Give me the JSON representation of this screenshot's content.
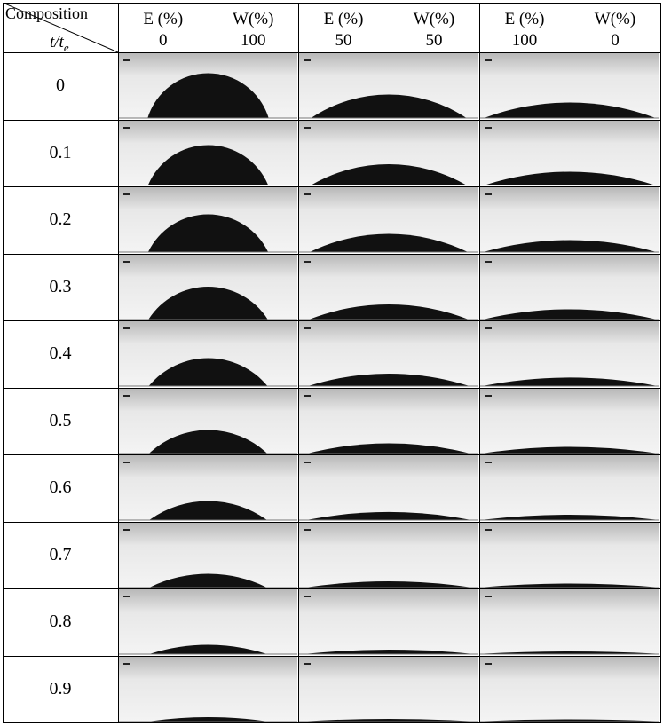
{
  "header": {
    "composition_label": "Composition",
    "time_label": "t/t",
    "time_label_sub": "e",
    "columns": [
      {
        "e_label": "E (%)",
        "w_label": "W(%)",
        "e_value": "0",
        "w_value": "100"
      },
      {
        "e_label": "E (%)",
        "w_label": "W(%)",
        "e_value": "50",
        "w_value": "50"
      },
      {
        "e_label": "E (%)",
        "w_label": "W(%)",
        "e_value": "100",
        "w_value": "0"
      }
    ]
  },
  "rows": [
    "0",
    "0.1",
    "0.2",
    "0.3",
    "0.4",
    "0.5",
    "0.6",
    "0.7",
    "0.8",
    "0.9"
  ],
  "droplet_relative_heights": [
    [
      1.0,
      0.52,
      0.34
    ],
    [
      0.9,
      0.47,
      0.3
    ],
    [
      0.84,
      0.4,
      0.26
    ],
    [
      0.73,
      0.33,
      0.22
    ],
    [
      0.62,
      0.27,
      0.18
    ],
    [
      0.52,
      0.22,
      0.14
    ],
    [
      0.42,
      0.17,
      0.11
    ],
    [
      0.3,
      0.13,
      0.08
    ],
    [
      0.2,
      0.09,
      0.05
    ],
    [
      0.09,
      0.05,
      0.03
    ]
  ],
  "colors": {
    "droplet": "#111111",
    "background_top": "#b8b8b8",
    "background_bottom": "#f4f4f4"
  }
}
